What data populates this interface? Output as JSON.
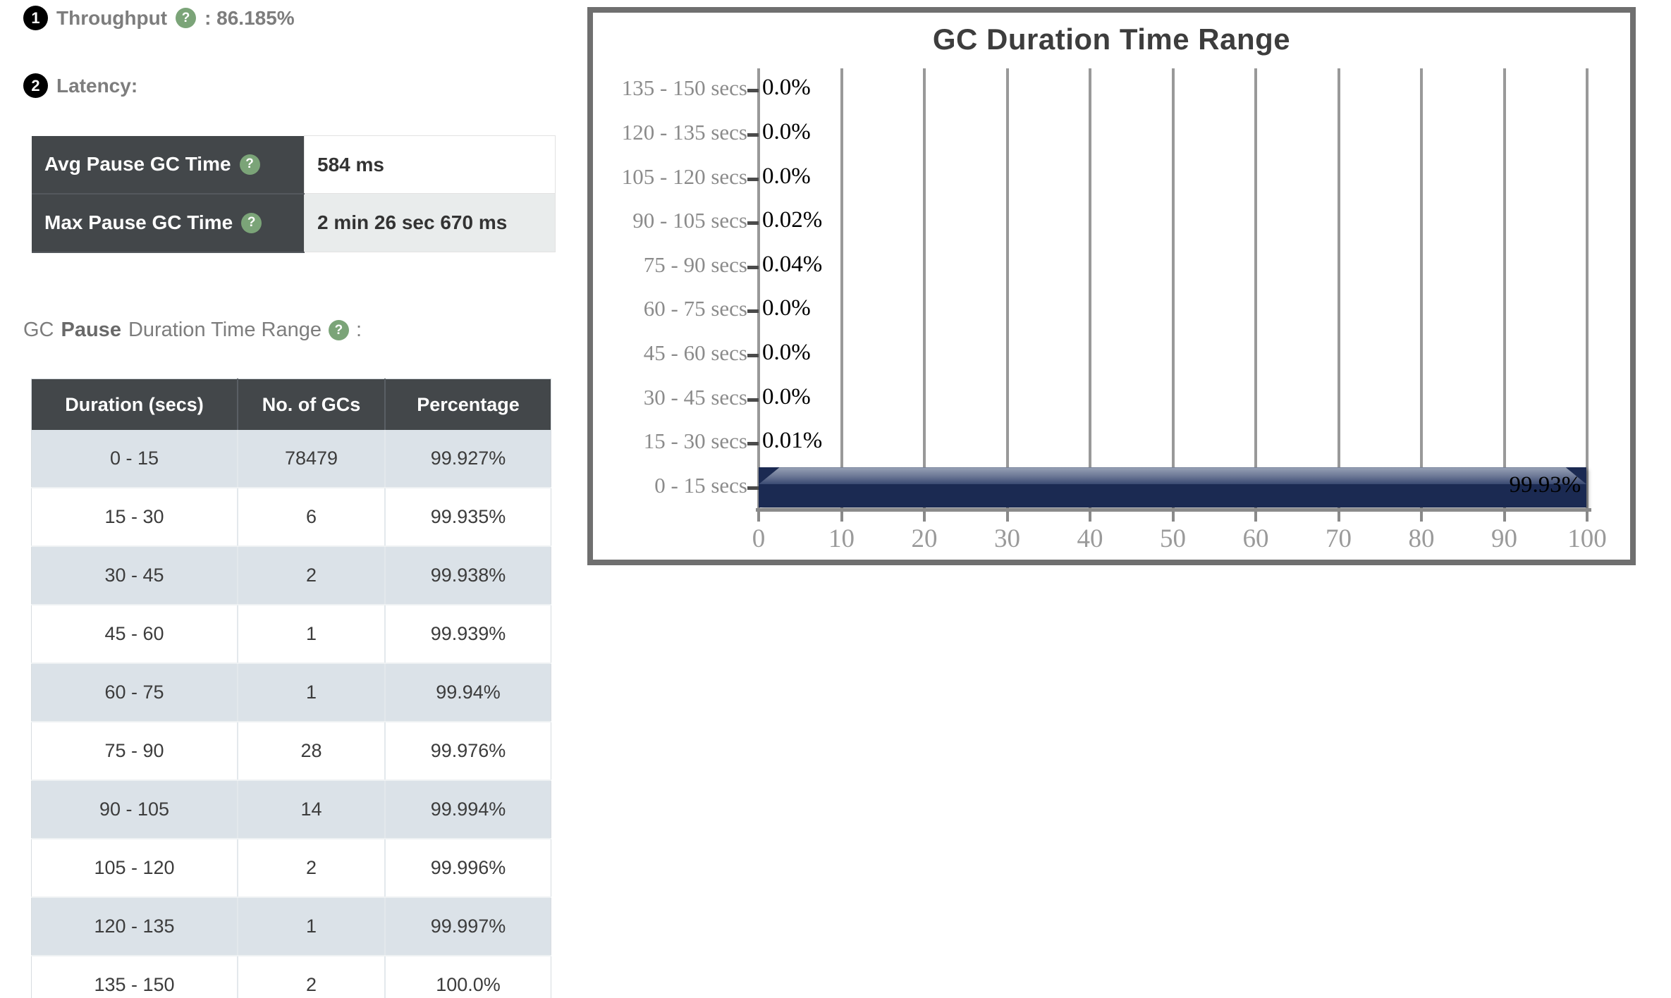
{
  "help_icon": "?",
  "throughput": {
    "badge": "1",
    "label": "Throughput",
    "value_suffix": ": 86.185%"
  },
  "latency": {
    "badge": "2",
    "heading": "Latency:",
    "rows": [
      {
        "key": "Avg Pause GC Time",
        "value": "584 ms"
      },
      {
        "key": "Max Pause GC Time",
        "value": "2 min 26 sec 670 ms"
      }
    ]
  },
  "gc_pause_section": {
    "prefix": "GC",
    "bold": "Pause",
    "suffix": "Duration Time Range",
    "colon": ":"
  },
  "duration_table": {
    "headers": [
      "Duration (secs)",
      "No. of GCs",
      "Percentage"
    ],
    "rows": [
      [
        "0 - 15",
        "78479",
        "99.927%"
      ],
      [
        "15 - 30",
        "6",
        "99.935%"
      ],
      [
        "30 - 45",
        "2",
        "99.938%"
      ],
      [
        "45 - 60",
        "1",
        "99.939%"
      ],
      [
        "60 - 75",
        "1",
        "99.94%"
      ],
      [
        "75 - 90",
        "28",
        "99.976%"
      ],
      [
        "90 - 105",
        "14",
        "99.994%"
      ],
      [
        "105 - 120",
        "2",
        "99.996%"
      ],
      [
        "120 - 135",
        "1",
        "99.997%"
      ],
      [
        "135 - 150",
        "2",
        "100.0%"
      ]
    ]
  },
  "chart_data": {
    "type": "bar",
    "orientation": "horizontal",
    "title": "GC Duration Time Range",
    "categories": [
      "135 - 150 secs",
      "120 - 135 secs",
      "105 - 120 secs",
      "90 - 105 secs",
      "75 - 90 secs",
      "60 - 75 secs",
      "45 - 60 secs",
      "30 - 45 secs",
      "15 - 30 secs",
      "0 - 15 secs"
    ],
    "values": [
      0.0,
      0.0,
      0.0,
      0.02,
      0.04,
      0.0,
      0.0,
      0.0,
      0.01,
      99.93
    ],
    "point_labels": [
      "0.0%",
      "0.0%",
      "0.0%",
      "0.02%",
      "0.04%",
      "0.0%",
      "0.0%",
      "0.0%",
      "0.01%",
      "99.93%"
    ],
    "xlabel": "",
    "ylabel": "",
    "xlim": [
      0,
      100
    ],
    "x_ticks": [
      0,
      10,
      20,
      30,
      40,
      50,
      60,
      70,
      80,
      90,
      100
    ],
    "grid": "vertical-only",
    "legend": "none"
  },
  "colors": {
    "bar": "#1b2a52",
    "bar_highlight": "#98a2b6",
    "table_header_bg": "#43474a",
    "row_stripe": "#dbe2e8",
    "value_row_alt": "#e9ecec",
    "help_icon_bg": "#7ba478",
    "badge_bg": "#000000",
    "chart_frame": "#6f6f6f",
    "grid_line": "#999999",
    "muted_text": "#7d7d7d"
  }
}
